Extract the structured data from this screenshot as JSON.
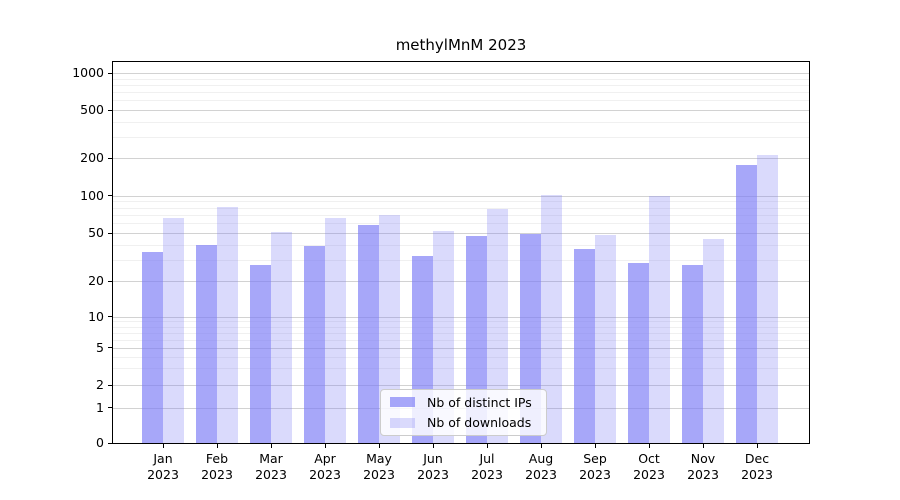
{
  "figure": {
    "title": "methylMnM 2023"
  },
  "colors": {
    "bar_base": "#7a7af6",
    "bar_ips_alpha": 0.66,
    "bar_downloads_alpha": 0.28,
    "grid_major": "#d2d2d2",
    "grid_minor": "#f0f0f0",
    "axis": "#000000",
    "legend_border": "#cccccc"
  },
  "chart_data": {
    "type": "bar",
    "title": "methylMnM 2023",
    "categories": [
      "Jan",
      "Feb",
      "Mar",
      "Apr",
      "May",
      "Jun",
      "Jul",
      "Aug",
      "Sep",
      "Oct",
      "Nov",
      "Dec"
    ],
    "x_year_line": "2023",
    "series": [
      {
        "name": "Nb of distinct IPs",
        "values": [
          35,
          40,
          27,
          39,
          58,
          32,
          47,
          49,
          37,
          28,
          27,
          178
        ]
      },
      {
        "name": "Nb of downloads",
        "values": [
          66,
          81,
          51,
          66,
          70,
          52,
          78,
          101,
          48,
          100,
          45,
          213
        ]
      }
    ],
    "xlabel": "",
    "ylabel": "",
    "yscale": "symlog",
    "yticks": [
      0,
      1,
      2,
      5,
      10,
      20,
      50,
      100,
      200,
      500,
      1000
    ],
    "ylim": [
      0,
      1200
    ],
    "grid": "horizontal major and log-minor gridlines",
    "legend_position": "lower center"
  }
}
